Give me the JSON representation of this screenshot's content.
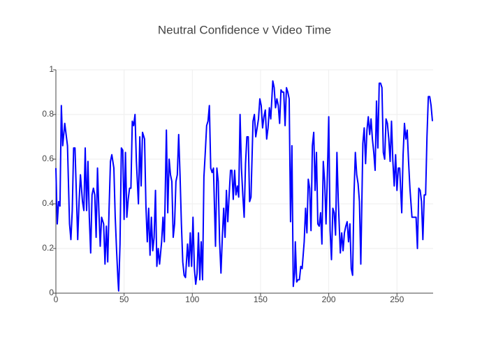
{
  "chart_data": {
    "type": "line",
    "title": "Neutral Confidence v Video Time",
    "x": [
      0,
      1,
      2,
      3,
      4,
      5,
      6.5,
      8.5,
      10,
      11,
      12,
      13,
      14,
      15,
      16,
      17,
      18,
      19.5,
      20.5,
      21.5,
      22.5,
      23.5,
      24.5,
      25.5,
      26.5,
      27.5,
      28.5,
      29.5,
      30.5,
      31.5,
      32.5,
      33.5,
      35,
      36,
      37,
      38,
      39,
      40,
      41,
      42.5,
      43.5,
      44.5,
      45.5,
      46,
      47,
      48,
      49,
      50,
      51,
      52,
      53,
      54,
      55,
      56,
      57,
      58,
      59,
      60.5,
      61.5,
      62.5,
      63.5,
      65,
      66,
      67,
      68,
      69,
      70,
      71,
      72,
      73,
      74,
      75,
      76,
      77.5,
      78.5,
      79.5,
      81,
      82,
      83,
      84,
      85,
      86,
      87,
      88,
      89,
      90,
      91,
      92,
      93,
      94,
      95,
      96.5,
      97.5,
      98.5,
      99.5,
      100.5,
      101.5,
      102.5,
      103.5,
      104.5,
      105.5,
      106.5,
      107.5,
      108.5,
      109.5,
      110.5,
      111.5,
      112.5,
      113.5,
      114.5,
      115.5,
      117,
      118,
      119,
      120,
      121,
      122,
      123,
      124,
      125,
      126,
      127,
      128,
      129,
      130,
      131,
      132,
      133,
      134,
      135,
      136,
      137,
      138,
      139,
      140,
      141,
      142,
      143,
      144.5,
      145.5,
      146.5,
      147.5,
      148.5,
      149.5,
      150.5,
      151.5,
      152.5,
      153.5,
      154.5,
      155.5,
      156.5,
      157.5,
      159,
      160,
      161,
      162,
      163,
      164,
      165,
      166,
      167,
      168,
      169,
      170,
      171,
      172,
      173,
      174,
      175,
      175.5,
      176.5,
      177.5,
      178.5,
      179.5,
      180.5,
      182,
      183,
      184,
      185,
      186,
      187,
      188,
      189,
      190,
      191,
      192,
      193,
      194,
      195,
      196,
      197,
      198,
      199,
      200,
      201,
      202,
      203,
      204,
      205,
      206,
      207,
      208.5,
      209.5,
      210.5,
      211.5,
      212.5,
      213.5,
      214.5,
      215.5,
      216.5,
      217.5,
      218.5,
      219.5,
      220.5,
      221.5,
      222.5,
      223.5,
      225,
      226,
      227,
      228,
      229,
      230,
      231,
      232,
      233,
      234,
      235,
      236,
      237,
      238,
      239,
      240,
      241,
      242,
      243,
      244,
      245,
      246,
      247,
      248,
      249,
      250,
      251,
      252,
      253.5,
      254.5,
      255.5,
      256.5,
      257.5,
      258.5,
      259.5,
      261,
      263,
      264,
      265,
      266,
      267,
      268,
      269,
      270,
      271,
      272,
      273,
      274,
      275,
      276
    ],
    "values": [
      0.56,
      0.31,
      0.41,
      0.39,
      0.84,
      0.66,
      0.76,
      0.66,
      0.31,
      0.24,
      0.37,
      0.65,
      0.65,
      0.45,
      0.24,
      0.41,
      0.53,
      0.41,
      0.37,
      0.65,
      0.37,
      0.59,
      0.34,
      0.18,
      0.44,
      0.47,
      0.44,
      0.25,
      0.56,
      0.37,
      0.21,
      0.34,
      0.31,
      0.13,
      0.3,
      0.14,
      0.38,
      0.59,
      0.62,
      0.56,
      0.34,
      0.19,
      0.06,
      0.01,
      0.22,
      0.65,
      0.64,
      0.33,
      0.63,
      0.34,
      0.42,
      0.47,
      0.47,
      0.77,
      0.75,
      0.8,
      0.59,
      0.4,
      0.7,
      0.48,
      0.72,
      0.69,
      0.39,
      0.23,
      0.38,
      0.17,
      0.34,
      0.19,
      0.25,
      0.46,
      0.12,
      0.2,
      0.13,
      0.23,
      0.34,
      0.23,
      0.73,
      0.36,
      0.6,
      0.53,
      0.5,
      0.25,
      0.31,
      0.5,
      0.53,
      0.71,
      0.53,
      0.31,
      0.14,
      0.08,
      0.07,
      0.22,
      0.12,
      0.27,
      0.12,
      0.34,
      0.11,
      0.04,
      0.09,
      0.27,
      0.06,
      0.23,
      0.06,
      0.52,
      0.63,
      0.75,
      0.77,
      0.84,
      0.56,
      0.54,
      0.56,
      0.21,
      0.56,
      0.5,
      0.23,
      0.09,
      0.25,
      0.38,
      0.25,
      0.46,
      0.32,
      0.44,
      0.55,
      0.55,
      0.42,
      0.55,
      0.44,
      0.48,
      0.43,
      0.8,
      0.56,
      0.44,
      0.34,
      0.58,
      0.7,
      0.7,
      0.41,
      0.43,
      0.77,
      0.8,
      0.7,
      0.74,
      0.78,
      0.87,
      0.84,
      0.74,
      0.79,
      0.82,
      0.69,
      0.74,
      0.83,
      0.78,
      0.95,
      0.92,
      0.83,
      0.87,
      0.84,
      0.76,
      0.91,
      0.9,
      0.9,
      0.75,
      0.92,
      0.9,
      0.87,
      0.32,
      0.66,
      0.03,
      0.09,
      0.23,
      0.05,
      0.06,
      0.06,
      0.12,
      0.11,
      0.23,
      0.38,
      0.27,
      0.51,
      0.47,
      0.28,
      0.66,
      0.72,
      0.46,
      0.63,
      0.31,
      0.3,
      0.36,
      0.22,
      0.59,
      0.5,
      0.31,
      0.53,
      0.79,
      0.28,
      0.15,
      0.38,
      0.36,
      0.26,
      0.63,
      0.41,
      0.18,
      0.27,
      0.19,
      0.27,
      0.3,
      0.32,
      0.23,
      0.31,
      0.11,
      0.08,
      0.44,
      0.63,
      0.53,
      0.49,
      0.41,
      0.13,
      0.67,
      0.74,
      0.58,
      0.73,
      0.79,
      0.71,
      0.78,
      0.69,
      0.63,
      0.55,
      0.86,
      0.65,
      0.94,
      0.94,
      0.92,
      0.63,
      0.6,
      0.78,
      0.76,
      0.69,
      0.59,
      0.77,
      0.59,
      0.48,
      0.62,
      0.46,
      0.56,
      0.56,
      0.36,
      0.62,
      0.76,
      0.69,
      0.73,
      0.59,
      0.47,
      0.34,
      0.34,
      0.34,
      0.2,
      0.47,
      0.46,
      0.41,
      0.24,
      0.44,
      0.44,
      0.7,
      0.88,
      0.88,
      0.84,
      0.77
    ],
    "color": "#0000ff",
    "xlim": [
      0,
      276.5
    ],
    "xticks": [
      0,
      50,
      100,
      150,
      200,
      250
    ],
    "ylim": [
      0,
      1
    ],
    "yticks": [
      0,
      0.2,
      0.4,
      0.6,
      0.8,
      1
    ],
    "grid": true
  }
}
